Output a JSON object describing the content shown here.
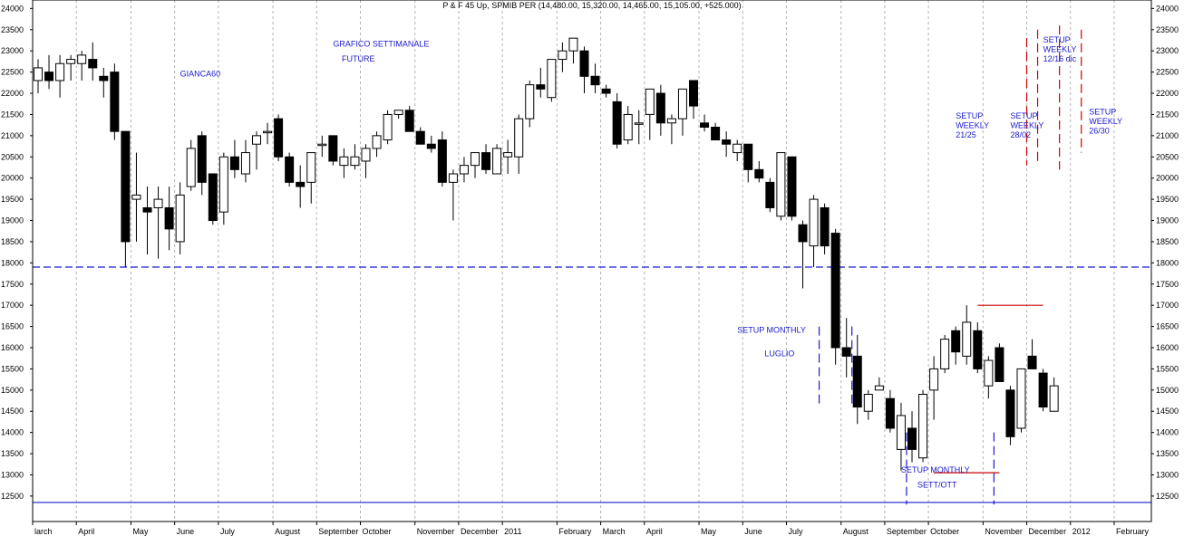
{
  "chart_data": {
    "type": "candlestick",
    "title": "P & F 45 Up, SPMIB PER (14,480.00, 15,320.00, 14,465.00, 15,105.00, +525.000)",
    "ylim": [
      11900,
      24200
    ],
    "y_ticks": [
      12500,
      13000,
      13500,
      14000,
      14500,
      15000,
      15500,
      16000,
      16500,
      17000,
      17500,
      18000,
      18500,
      19000,
      19500,
      20000,
      20500,
      21000,
      21500,
      22000,
      22500,
      23000,
      23500,
      24000
    ],
    "x_labels": [
      {
        "i": 0,
        "label": "larch"
      },
      {
        "i": 4,
        "label": "April"
      },
      {
        "i": 9,
        "label": "May"
      },
      {
        "i": 13,
        "label": "June"
      },
      {
        "i": 17,
        "label": "July"
      },
      {
        "i": 22,
        "label": "August"
      },
      {
        "i": 26,
        "label": "September"
      },
      {
        "i": 30,
        "label": "October"
      },
      {
        "i": 35,
        "label": "November"
      },
      {
        "i": 39,
        "label": "December"
      },
      {
        "i": 43,
        "label": "2011"
      },
      {
        "i": 48,
        "label": "February"
      },
      {
        "i": 52,
        "label": "March"
      },
      {
        "i": 56,
        "label": "April"
      },
      {
        "i": 61,
        "label": "May"
      },
      {
        "i": 65,
        "label": "June"
      },
      {
        "i": 69,
        "label": "July"
      },
      {
        "i": 74,
        "label": "August"
      },
      {
        "i": 78,
        "label": "September"
      },
      {
        "i": 82,
        "label": "October"
      },
      {
        "i": 87,
        "label": "November"
      },
      {
        "i": 91,
        "label": "December"
      },
      {
        "i": 95,
        "label": "2012"
      },
      {
        "i": 99,
        "label": "February"
      }
    ],
    "candles": [
      {
        "o": 22300,
        "h": 22800,
        "l": 22000,
        "c": 22600
      },
      {
        "o": 22500,
        "h": 22900,
        "l": 22100,
        "c": 22300
      },
      {
        "o": 22300,
        "h": 22900,
        "l": 21900,
        "c": 22700
      },
      {
        "o": 22700,
        "h": 22900,
        "l": 22300,
        "c": 22800
      },
      {
        "o": 22700,
        "h": 23000,
        "l": 22300,
        "c": 22900
      },
      {
        "o": 22800,
        "h": 23200,
        "l": 22300,
        "c": 22600
      },
      {
        "o": 22400,
        "h": 22600,
        "l": 21900,
        "c": 22300
      },
      {
        "o": 22500,
        "h": 22700,
        "l": 20900,
        "c": 21100
      },
      {
        "o": 21100,
        "h": 21100,
        "l": 17900,
        "c": 18500
      },
      {
        "o": 19500,
        "h": 20600,
        "l": 18500,
        "c": 19600
      },
      {
        "o": 19300,
        "h": 19800,
        "l": 18200,
        "c": 19200
      },
      {
        "o": 19300,
        "h": 19800,
        "l": 18100,
        "c": 19500
      },
      {
        "o": 19300,
        "h": 19800,
        "l": 18300,
        "c": 18800
      },
      {
        "o": 18500,
        "h": 19900,
        "l": 18200,
        "c": 19600
      },
      {
        "o": 19800,
        "h": 20900,
        "l": 19700,
        "c": 20700
      },
      {
        "o": 21000,
        "h": 21100,
        "l": 19600,
        "c": 19900
      },
      {
        "o": 20100,
        "h": 20100,
        "l": 18900,
        "c": 19000
      },
      {
        "o": 19200,
        "h": 20600,
        "l": 18900,
        "c": 20500
      },
      {
        "o": 20500,
        "h": 20900,
        "l": 20000,
        "c": 20200
      },
      {
        "o": 20100,
        "h": 20900,
        "l": 19900,
        "c": 20600
      },
      {
        "o": 20800,
        "h": 21100,
        "l": 20200,
        "c": 21000
      },
      {
        "o": 21100,
        "h": 21300,
        "l": 20800,
        "c": 21100
      },
      {
        "o": 21400,
        "h": 21500,
        "l": 20400,
        "c": 20500
      },
      {
        "o": 20500,
        "h": 20600,
        "l": 19800,
        "c": 19900
      },
      {
        "o": 19900,
        "h": 20300,
        "l": 19300,
        "c": 19800
      },
      {
        "o": 19900,
        "h": 20600,
        "l": 19400,
        "c": 20600
      },
      {
        "o": 20800,
        "h": 21000,
        "l": 20500,
        "c": 20800
      },
      {
        "o": 21000,
        "h": 21000,
        "l": 20300,
        "c": 20400
      },
      {
        "o": 20300,
        "h": 20700,
        "l": 20000,
        "c": 20500
      },
      {
        "o": 20300,
        "h": 20800,
        "l": 20200,
        "c": 20500
      },
      {
        "o": 20400,
        "h": 20800,
        "l": 20000,
        "c": 20700
      },
      {
        "o": 20700,
        "h": 21100,
        "l": 20500,
        "c": 21000
      },
      {
        "o": 20900,
        "h": 21600,
        "l": 20800,
        "c": 21500
      },
      {
        "o": 21500,
        "h": 21600,
        "l": 21400,
        "c": 21600
      },
      {
        "o": 21600,
        "h": 21700,
        "l": 21100,
        "c": 21100
      },
      {
        "o": 21100,
        "h": 21200,
        "l": 20800,
        "c": 20800
      },
      {
        "o": 20800,
        "h": 21000,
        "l": 20600,
        "c": 20700
      },
      {
        "o": 20900,
        "h": 21100,
        "l": 19800,
        "c": 19900
      },
      {
        "o": 19900,
        "h": 20200,
        "l": 19000,
        "c": 20100
      },
      {
        "o": 20100,
        "h": 20500,
        "l": 19900,
        "c": 20300
      },
      {
        "o": 20300,
        "h": 20600,
        "l": 20000,
        "c": 20600
      },
      {
        "o": 20600,
        "h": 20800,
        "l": 20100,
        "c": 20200
      },
      {
        "o": 20100,
        "h": 20800,
        "l": 20100,
        "c": 20700
      },
      {
        "o": 20500,
        "h": 20900,
        "l": 20100,
        "c": 20600
      },
      {
        "o": 20500,
        "h": 21500,
        "l": 20100,
        "c": 21400
      },
      {
        "o": 21400,
        "h": 22300,
        "l": 21200,
        "c": 22200
      },
      {
        "o": 22200,
        "h": 22600,
        "l": 21900,
        "c": 22100
      },
      {
        "o": 21900,
        "h": 22800,
        "l": 21800,
        "c": 22800
      },
      {
        "o": 22800,
        "h": 23200,
        "l": 22500,
        "c": 23000
      },
      {
        "o": 23000,
        "h": 23300,
        "l": 22700,
        "c": 23300
      },
      {
        "o": 23000,
        "h": 23100,
        "l": 22000,
        "c": 22400
      },
      {
        "o": 22400,
        "h": 22700,
        "l": 22000,
        "c": 22200
      },
      {
        "o": 22100,
        "h": 22200,
        "l": 21900,
        "c": 22000
      },
      {
        "o": 21800,
        "h": 22000,
        "l": 20700,
        "c": 20800
      },
      {
        "o": 20900,
        "h": 21700,
        "l": 20800,
        "c": 21500
      },
      {
        "o": 21300,
        "h": 21600,
        "l": 20800,
        "c": 21300
      },
      {
        "o": 21500,
        "h": 22100,
        "l": 20900,
        "c": 22100
      },
      {
        "o": 22000,
        "h": 22200,
        "l": 21000,
        "c": 21300
      },
      {
        "o": 21300,
        "h": 21500,
        "l": 20800,
        "c": 21400
      },
      {
        "o": 21400,
        "h": 22100,
        "l": 21000,
        "c": 22100
      },
      {
        "o": 22300,
        "h": 22300,
        "l": 21400,
        "c": 21700
      },
      {
        "o": 21300,
        "h": 21500,
        "l": 21100,
        "c": 21200
      },
      {
        "o": 21200,
        "h": 21300,
        "l": 20900,
        "c": 20900
      },
      {
        "o": 20900,
        "h": 21100,
        "l": 20500,
        "c": 20800
      },
      {
        "o": 20600,
        "h": 20900,
        "l": 20400,
        "c": 20800
      },
      {
        "o": 20800,
        "h": 20800,
        "l": 19900,
        "c": 20200
      },
      {
        "o": 20200,
        "h": 20400,
        "l": 19900,
        "c": 20000
      },
      {
        "o": 19900,
        "h": 20000,
        "l": 19200,
        "c": 19300
      },
      {
        "o": 19100,
        "h": 20600,
        "l": 19000,
        "c": 20600
      },
      {
        "o": 20500,
        "h": 20500,
        "l": 19000,
        "c": 19100
      },
      {
        "o": 18900,
        "h": 19000,
        "l": 17400,
        "c": 18500
      },
      {
        "o": 18400,
        "h": 19600,
        "l": 17900,
        "c": 19500
      },
      {
        "o": 19300,
        "h": 19400,
        "l": 18200,
        "c": 18400
      },
      {
        "o": 18700,
        "h": 18800,
        "l": 15600,
        "c": 16000
      },
      {
        "o": 16000,
        "h": 16700,
        "l": 15300,
        "c": 15800
      },
      {
        "o": 15800,
        "h": 16300,
        "l": 14200,
        "c": 14600
      },
      {
        "o": 14500,
        "h": 15000,
        "l": 14300,
        "c": 14900
      },
      {
        "o": 15000,
        "h": 15300,
        "l": 15000,
        "c": 15100
      },
      {
        "o": 14800,
        "h": 15000,
        "l": 14000,
        "c": 14100
      },
      {
        "o": 13600,
        "h": 14700,
        "l": 13100,
        "c": 14400
      },
      {
        "o": 14100,
        "h": 14500,
        "l": 13300,
        "c": 13600
      },
      {
        "o": 13400,
        "h": 15000,
        "l": 13300,
        "c": 14900
      },
      {
        "o": 15000,
        "h": 15800,
        "l": 14300,
        "c": 15500
      },
      {
        "o": 15500,
        "h": 16300,
        "l": 15400,
        "c": 16200
      },
      {
        "o": 16400,
        "h": 16500,
        "l": 15600,
        "c": 15900
      },
      {
        "o": 15800,
        "h": 17000,
        "l": 15600,
        "c": 16600
      },
      {
        "o": 16400,
        "h": 16600,
        "l": 15400,
        "c": 15500
      },
      {
        "o": 15100,
        "h": 15800,
        "l": 14800,
        "c": 15700
      },
      {
        "o": 16000,
        "h": 16100,
        "l": 15200,
        "c": 15200
      },
      {
        "o": 15000,
        "h": 15100,
        "l": 13700,
        "c": 13900
      },
      {
        "o": 14100,
        "h": 15500,
        "l": 14000,
        "c": 15500
      },
      {
        "o": 15800,
        "h": 16200,
        "l": 15500,
        "c": 15500
      },
      {
        "o": 15400,
        "h": 15500,
        "l": 14500,
        "c": 14600
      },
      {
        "o": 14500,
        "h": 15300,
        "l": 14500,
        "c": 15100
      }
    ],
    "horizontal_lines": [
      {
        "y": 17900,
        "color": "#1a1acd",
        "dashed": true
      },
      {
        "y": 12350,
        "color": "#1a1acd",
        "dashed": false
      }
    ],
    "resistance_lines": [
      {
        "y": 17000,
        "i_from": 86,
        "i_to": 92,
        "color": "#cc0000"
      },
      {
        "y": 13050,
        "i_from": 82,
        "i_to": 88,
        "color": "#cc0000"
      }
    ],
    "vertical_markers": [
      {
        "i": 71,
        "y_from": 14600,
        "y_to": 16500,
        "color": "#1a1acd"
      },
      {
        "i": 74,
        "y_from": 14600,
        "y_to": 16500,
        "color": "#1a1acd"
      },
      {
        "i": 79,
        "y_from": 12300,
        "y_to": 14000,
        "color": "#1a1acd"
      },
      {
        "i": 87,
        "y_from": 12300,
        "y_to": 14000,
        "color": "#1a1acd"
      },
      {
        "i": 90,
        "y_from": 20300,
        "y_to": 23300,
        "color": "#cc0000"
      },
      {
        "i": 91,
        "y_from": 20300,
        "y_to": 23500,
        "color": "#cc0000"
      },
      {
        "i": 93,
        "y_from": 20200,
        "y_to": 23600,
        "color": "#cc0000"
      },
      {
        "i": 95,
        "y_from": 20600,
        "y_to": 23500,
        "color": "#cc0000"
      }
    ],
    "annotations": [
      {
        "lines": [
          "GIANCA60"
        ],
        "i": 13,
        "y": 22400
      },
      {
        "lines": [
          "GRAFICO SETTIMANALE"
        ],
        "i": 27,
        "y": 23100
      },
      {
        "lines": [
          "FUTURE"
        ],
        "i": 27.8,
        "y": 22750
      },
      {
        "lines": [
          "SETUP MONTHLY"
        ],
        "i": 64,
        "y": 16350
      },
      {
        "lines": [
          "LUGLIO"
        ],
        "i": 66.5,
        "y": 15800
      },
      {
        "lines": [
          "SETUP MONTHLY"
        ],
        "i": 79,
        "y": 13050
      },
      {
        "lines": [
          "SETT/OTT"
        ],
        "i": 80.5,
        "y": 12700
      },
      {
        "lines": [
          "SETUP",
          "WEEKLY",
          "21/25"
        ],
        "i": 84,
        "y": 21400
      },
      {
        "lines": [
          "SETUP",
          "WEEKLY",
          "28/02"
        ],
        "i": 89,
        "y": 21400
      },
      {
        "lines": [
          "SETUP",
          "WEEKLY",
          "12/16 dic"
        ],
        "i": 92,
        "y": 23200
      },
      {
        "lines": [
          "SETUP",
          "WEEKLY",
          "26/30"
        ],
        "i": 96.2,
        "y": 21500
      }
    ]
  }
}
